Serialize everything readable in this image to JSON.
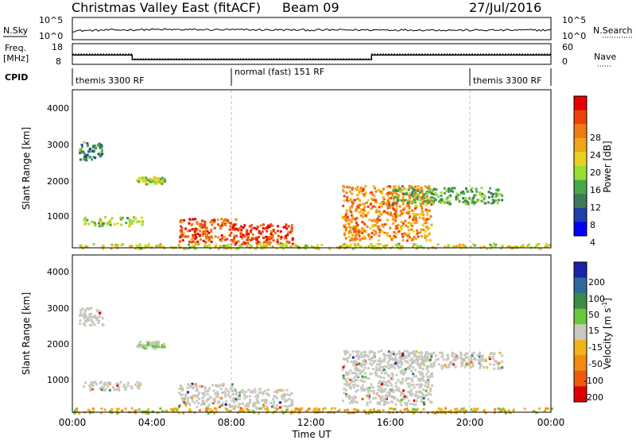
{
  "header": {
    "station": "Christmas Valley East (fitACF)",
    "beam": "Beam 09",
    "date": "27/Jul/2016"
  },
  "panels": {
    "nsky": {
      "label": "N.Sky",
      "yticks_left": [
        "10^5",
        "10^0"
      ],
      "yticks_right": [
        "10^5",
        "10^0"
      ],
      "right_label": "N.Search"
    },
    "freq": {
      "label_line1": "Freq.",
      "label_line2": "[MHz]",
      "yticks_left": [
        "18",
        "8"
      ],
      "yticks_right": [
        "60",
        "0"
      ],
      "right_label": "Nave"
    },
    "cpid": {
      "label": "CPID",
      "segments": [
        "themis 3300 RF",
        "normal (fast) 151 RF",
        "themis 3300 RF"
      ]
    },
    "power": {
      "ylabel": "Slant Range [km]",
      "colorbar_label": "Power [dB]",
      "colorbar_ticks": [
        "28",
        "24",
        "20",
        "16",
        "12",
        "8",
        "4"
      ]
    },
    "velocity": {
      "ylabel": "Slant Range [km]",
      "colorbar_label": "Velocity [m s",
      "colorbar_label_sup": "-1",
      "colorbar_label_end": "]",
      "colorbar_ticks": [
        "200",
        "100",
        "50",
        "15",
        "-15",
        "-50",
        "-100",
        "-200"
      ]
    },
    "xaxis": {
      "title": "Time UT",
      "ticks": [
        "00:00",
        "04:00",
        "08:00",
        "12:00",
        "16:00",
        "20:00",
        "00:00"
      ]
    }
  },
  "colors": {
    "power_scale": [
      "#0000ff",
      "#1e3fa8",
      "#3d7a5a",
      "#49a74a",
      "#9bdc32",
      "#e6d21f",
      "#f2a51a",
      "#f07a12",
      "#f03f0a",
      "#e60000"
    ],
    "velocity_scale": [
      "#1b23a8",
      "#2f6b9a",
      "#3d8a4a",
      "#66c93a",
      "#c8c8c0",
      "#f2b21c",
      "#f08a12",
      "#f05a0a",
      "#e00000"
    ],
    "ground_scatter": "#c8c8c0",
    "dashed_lines": "#c0c0c0"
  },
  "chart_data": [
    {
      "type": "line",
      "title": "Christmas Valley East (fitACF) Beam 09",
      "xlabel": "",
      "ylabel": "N.Sky",
      "x": [
        "00:00",
        "04:00",
        "08:00",
        "12:00",
        "16:00",
        "20:00",
        "00:00"
      ],
      "series": [
        {
          "name": "N.Sky",
          "values": [
            5,
            25,
            20,
            15,
            18,
            12,
            14
          ]
        }
      ]
    },
    {
      "type": "line",
      "ylabel": "Freq. [MHz]",
      "x_hours": [
        0,
        3,
        3,
        15,
        15,
        24
      ],
      "series": [
        {
          "name": "Freq.",
          "values": [
            12.5,
            12.5,
            10.3,
            10.3,
            12.5,
            12.5
          ]
        },
        {
          "name": "Nave",
          "values": [
            30,
            30,
            16,
            16,
            30,
            30
          ]
        }
      ]
    },
    {
      "type": "heatmap",
      "ylabel": "Slant Range [km]",
      "colorbar": "Power [dB]",
      "color_range": [
        0,
        30
      ],
      "x_range_hours": [
        0,
        24
      ],
      "y_range_km": [
        180,
        4500
      ],
      "xtick_labels": [
        "00:00",
        "04:00",
        "08:00",
        "12:00",
        "16:00",
        "20:00",
        "00:00"
      ],
      "ytick_labels": [
        "1000",
        "2000",
        "3000",
        "4000"
      ],
      "regions": [
        {
          "t0": 0.3,
          "t1": 1.5,
          "r0": 2600,
          "r1": 3100,
          "dB": 8
        },
        {
          "t0": 0.5,
          "t1": 3.5,
          "r0": 800,
          "r1": 1050,
          "dB": 12
        },
        {
          "t0": 3.2,
          "t1": 4.6,
          "r0": 1950,
          "r1": 2150,
          "dB": 14
        },
        {
          "t0": 5.3,
          "t1": 8.2,
          "r0": 350,
          "r1": 1000,
          "dB": 26
        },
        {
          "t0": 8.0,
          "t1": 11.0,
          "r0": 300,
          "r1": 850,
          "dB": 27
        },
        {
          "t0": 13.5,
          "t1": 18.0,
          "r0": 400,
          "r1": 1900,
          "dB": 22
        },
        {
          "t0": 16.0,
          "t1": 21.5,
          "r0": 1400,
          "r1": 1850,
          "dB": 10
        },
        {
          "t0": 0,
          "t1": 24,
          "r0": 180,
          "r1": 320,
          "dB": 16
        }
      ]
    },
    {
      "type": "heatmap",
      "ylabel": "Slant Range [km]",
      "colorbar": "Velocity [m s-1]",
      "color_range": [
        -200,
        200
      ],
      "x_range_hours": [
        0,
        24
      ],
      "y_range_km": [
        180,
        4500
      ],
      "xlabel": "Time UT",
      "xtick_labels": [
        "00:00",
        "04:00",
        "08:00",
        "12:00",
        "16:00",
        "20:00",
        "00:00"
      ],
      "ytick_labels": [
        "1000",
        "2000",
        "3000",
        "4000"
      ],
      "regions": [
        {
          "t0": 0.3,
          "t1": 1.5,
          "r0": 2600,
          "r1": 3100,
          "v": 0
        },
        {
          "t0": 0.5,
          "t1": 3.5,
          "r0": 800,
          "r1": 1050,
          "v": 0
        },
        {
          "t0": 3.2,
          "t1": 4.6,
          "r0": 1950,
          "r1": 2150,
          "v": 40
        },
        {
          "t0": 5.3,
          "t1": 8.2,
          "r0": 350,
          "r1": 1000,
          "v": 0
        },
        {
          "t0": 8.0,
          "t1": 11.0,
          "r0": 300,
          "r1": 850,
          "v": 0
        },
        {
          "t0": 13.5,
          "t1": 18.0,
          "r0": 400,
          "r1": 1900,
          "v": 0
        },
        {
          "t0": 16.0,
          "t1": 21.5,
          "r0": 1400,
          "r1": 1850,
          "v": 0
        },
        {
          "t0": 0,
          "t1": 24,
          "r0": 180,
          "r1": 320,
          "v": -40
        }
      ]
    }
  ]
}
